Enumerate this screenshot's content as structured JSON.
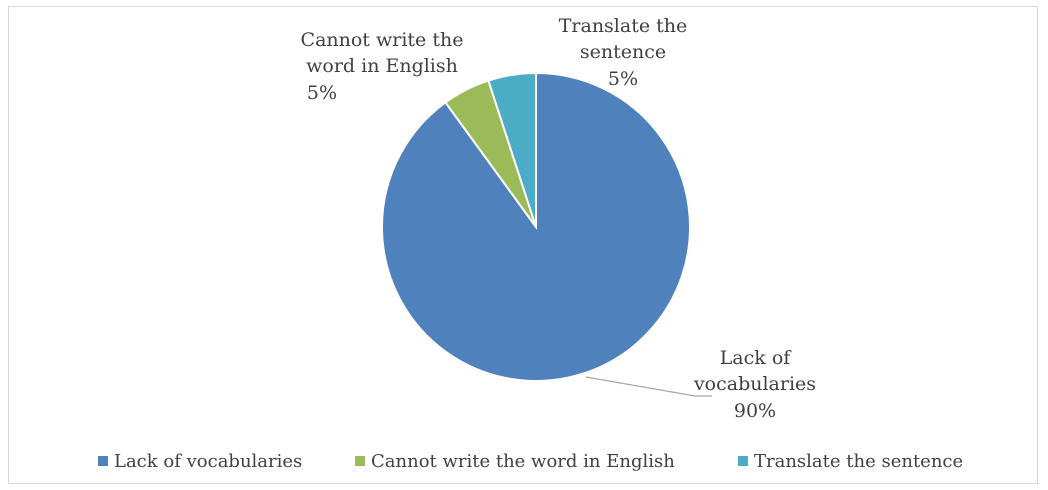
{
  "chart_data": {
    "type": "pie",
    "title": "",
    "legend_position": "bottom",
    "series": [
      {
        "values": [
          90,
          5,
          5
        ]
      }
    ],
    "categories": [
      "Lack of vocabularies",
      "Cannot write the word in English",
      "Translate the sentence"
    ],
    "slices": [
      {
        "label_lines": [
          "Lack of",
          "vocabularies"
        ],
        "value_text": "90%",
        "value": 90,
        "color": "#4f81bd"
      },
      {
        "label_lines": [
          "Cannot write the",
          "word in English"
        ],
        "value_text": "5%",
        "value": 5,
        "color": "#9bbb59"
      },
      {
        "label_lines": [
          "Translate the",
          "sentence"
        ],
        "value_text": "5%",
        "value": 5,
        "color": "#4bacc6"
      }
    ],
    "legend": [
      {
        "label": "Lack of vocabularies",
        "color": "#4f81bd"
      },
      {
        "label": "Cannot write the word in English",
        "color": "#9bbb59"
      },
      {
        "label": "Translate the sentence",
        "color": "#4bacc6"
      }
    ]
  }
}
